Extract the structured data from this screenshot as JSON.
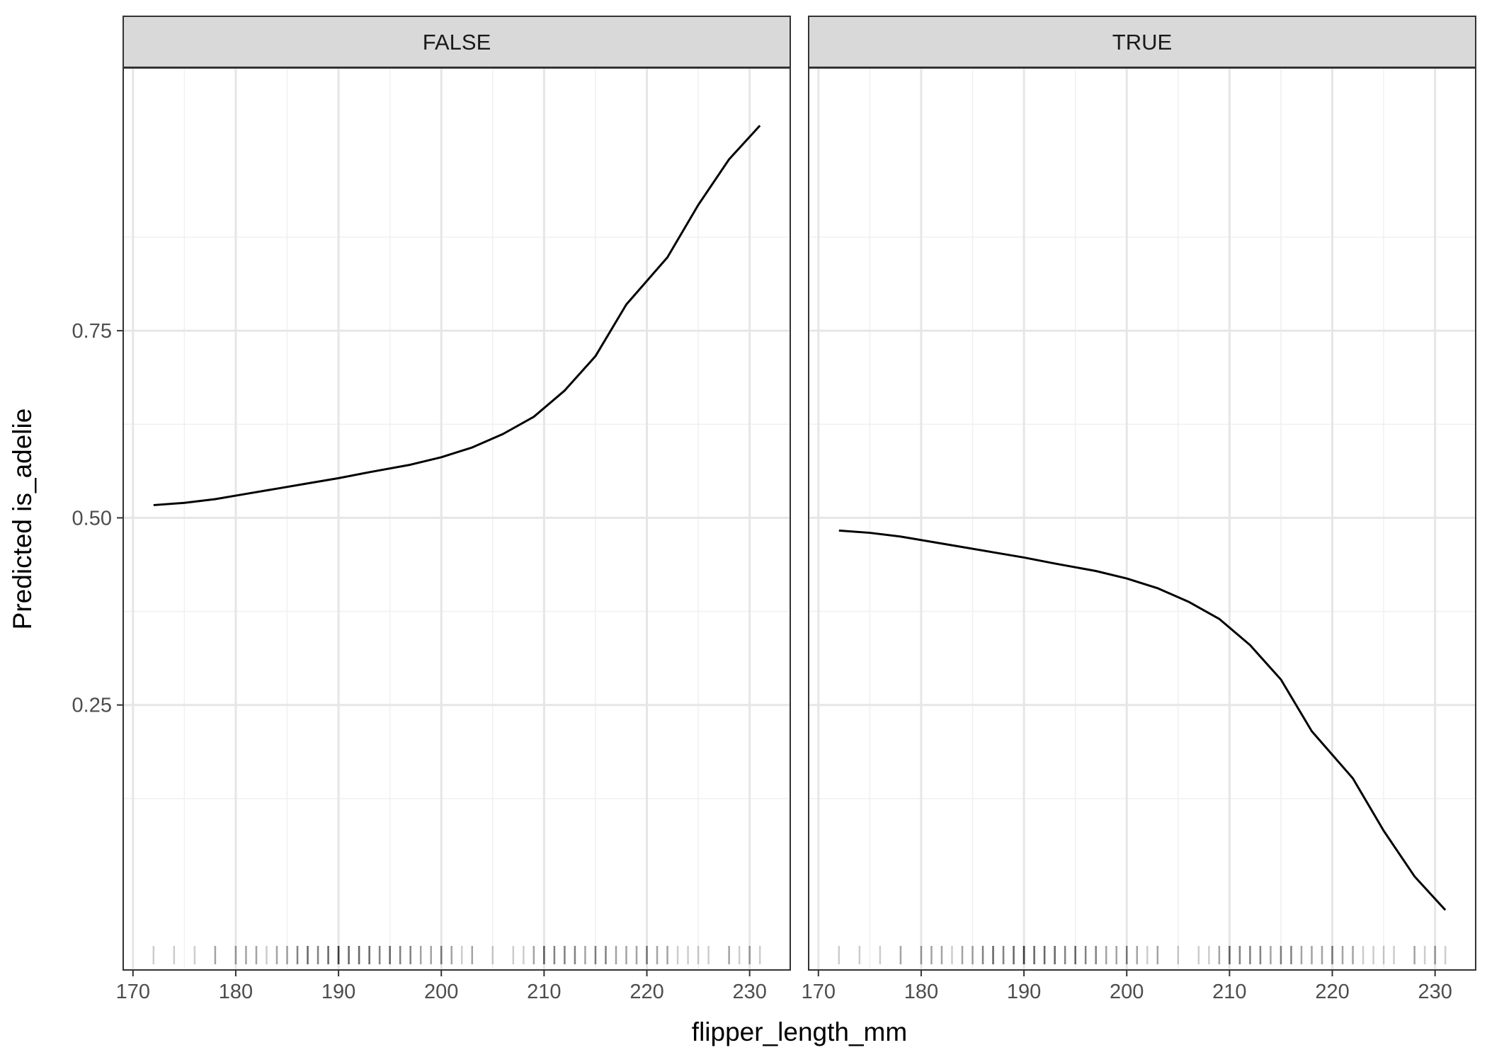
{
  "chart_data": {
    "type": "line",
    "facets": [
      {
        "label": "FALSE",
        "series": [
          {
            "x": [
              172,
              175,
              178,
              181,
              184,
              187,
              190,
              193,
              197,
              200,
              203,
              206,
              209,
              212,
              215,
              218,
              222,
              225,
              228,
              231
            ],
            "y": [
              0.517,
              0.52,
              0.525,
              0.532,
              0.539,
              0.546,
              0.553,
              0.561,
              0.571,
              0.581,
              0.594,
              0.612,
              0.635,
              0.67,
              0.716,
              0.785,
              0.848,
              0.918,
              0.979,
              1.024
            ]
          }
        ]
      },
      {
        "label": "TRUE",
        "series": [
          {
            "x": [
              172,
              175,
              178,
              181,
              184,
              187,
              190,
              193,
              197,
              200,
              203,
              206,
              209,
              212,
              215,
              218,
              222,
              225,
              228,
              231
            ],
            "y": [
              0.483,
              0.48,
              0.475,
              0.468,
              0.461,
              0.454,
              0.447,
              0.439,
              0.429,
              0.419,
              0.406,
              0.388,
              0.365,
              0.33,
              0.284,
              0.215,
              0.152,
              0.082,
              0.021,
              -0.024
            ]
          }
        ]
      }
    ],
    "xlabel": "flipper_length_mm",
    "ylabel": "Predicted is_adelie",
    "xticks": [
      170,
      180,
      190,
      200,
      210,
      220,
      230
    ],
    "yticks": [
      0.25,
      0.5,
      0.75
    ],
    "ytick_labels": [
      "0.25",
      "0.50",
      "0.75"
    ],
    "xlim": [
      169.05,
      233.95
    ],
    "ylim": [
      -0.104,
      1.101
    ],
    "grid": true,
    "rug": {
      "x": [
        172,
        174,
        176,
        178,
        178,
        180,
        180,
        181,
        181,
        182,
        182,
        183,
        184,
        184,
        185,
        185,
        186,
        186,
        186,
        187,
        187,
        187,
        187,
        188,
        188,
        188,
        189,
        189,
        189,
        189,
        190,
        190,
        190,
        190,
        190,
        190,
        191,
        191,
        191,
        191,
        192,
        192,
        192,
        192,
        193,
        193,
        193,
        193,
        194,
        194,
        194,
        195,
        195,
        195,
        195,
        196,
        196,
        196,
        197,
        197,
        197,
        198,
        198,
        199,
        199,
        200,
        200,
        200,
        201,
        201,
        202,
        203,
        203,
        205,
        207,
        208,
        209,
        209,
        210,
        210,
        210,
        210,
        211,
        211,
        211,
        212,
        212,
        212,
        213,
        213,
        213,
        214,
        214,
        215,
        215,
        215,
        216,
        216,
        216,
        217,
        217,
        218,
        218,
        219,
        219,
        220,
        220,
        220,
        221,
        221,
        222,
        222,
        223,
        224,
        225,
        226,
        228,
        228,
        229,
        230,
        230,
        231
      ]
    }
  }
}
